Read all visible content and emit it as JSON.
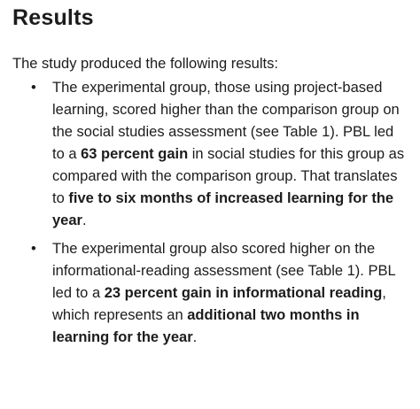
{
  "heading": "Results",
  "intro": "The study produced the following results:",
  "bullet_char": "•",
  "items": [
    {
      "t1": "The experimental group, those using project-based learning, scored higher than the comparison group on the social studies assessment (see Table 1). PBL led to a ",
      "b1": "63 percent gain",
      "t2": " in social studies for this group as compared with the comparison group. That translates to ",
      "b2": "five to six months of increased learning for the year",
      "t3": "."
    },
    {
      "t1": "The experimental group also scored higher on the informational-reading assessment (see Table 1). PBL led to a ",
      "b1": "23 percent gain in informational reading",
      "t2": ", which represents an ",
      "b2": "additional two months in learning for the year",
      "t3": "."
    }
  ]
}
